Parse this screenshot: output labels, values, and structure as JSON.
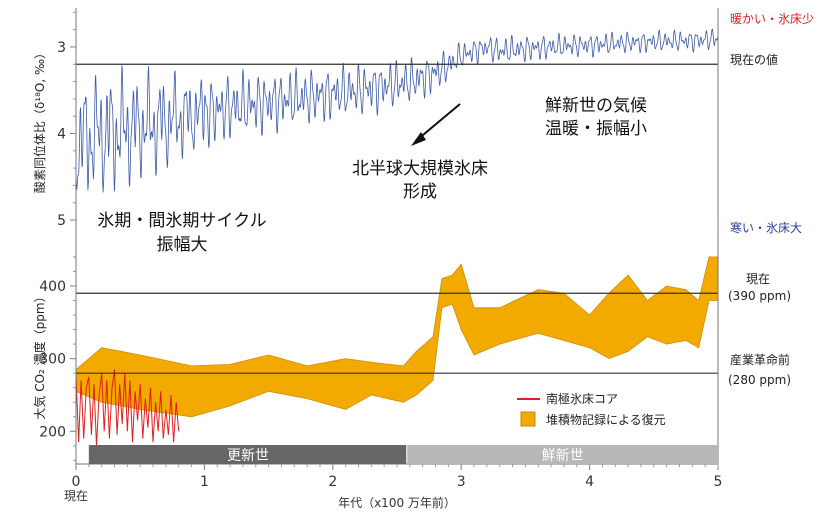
{
  "chart_data": [
    {
      "type": "line",
      "ylabel": "酸素同位体比（δ¹⁸O, ‰）",
      "ylim": [
        5.3,
        2.55
      ],
      "y_inverted": true,
      "yticks": [
        3,
        4,
        5
      ],
      "reference_lines": [
        {
          "label": "現在の値",
          "value": 3.2
        }
      ],
      "top_right_label": "暖かい・氷床少",
      "bottom_right_label": "寒い・氷床大",
      "annotations": {
        "glacial_cycle": [
          "氷期・間氷期サイクル",
          "振幅大"
        ],
        "nh_ice": [
          "北半球大規模氷床",
          "形成"
        ],
        "pliocene": [
          "鮮新世の気候",
          "温暖・振幅小"
        ]
      },
      "series": [
        {
          "color": "#3b5ba8",
          "x": [
            0.0,
            0.1,
            0.2,
            0.3,
            0.4,
            0.5,
            0.6,
            0.7,
            0.8,
            0.9,
            1.0,
            1.2,
            1.4,
            1.6,
            1.8,
            2.0,
            2.2,
            2.4,
            2.6,
            2.7,
            2.8,
            2.9,
            3.0,
            3.1,
            3.2,
            3.3,
            3.5,
            3.7,
            3.9,
            4.1,
            4.3,
            4.5,
            4.7,
            4.9,
            5.0
          ],
          "mean": [
            4.1,
            4.05,
            4.0,
            3.98,
            3.95,
            3.92,
            3.9,
            3.86,
            3.82,
            3.8,
            3.76,
            3.7,
            3.66,
            3.62,
            3.58,
            3.54,
            3.5,
            3.45,
            3.4,
            3.35,
            3.3,
            3.22,
            3.1,
            3.05,
            3.0,
            3.05,
            3.02,
            3.0,
            2.98,
            2.97,
            2.95,
            2.94,
            2.93,
            2.92,
            2.9
          ],
          "amplitude": [
            0.7,
            0.7,
            0.7,
            0.7,
            0.65,
            0.6,
            0.58,
            0.55,
            0.5,
            0.45,
            0.4,
            0.38,
            0.36,
            0.34,
            0.32,
            0.3,
            0.3,
            0.28,
            0.26,
            0.24,
            0.22,
            0.18,
            0.15,
            0.15,
            0.14,
            0.16,
            0.15,
            0.14,
            0.13,
            0.13,
            0.12,
            0.12,
            0.12,
            0.12,
            0.12
          ]
        }
      ]
    },
    {
      "type": "area",
      "xlabel": "年代（x100 万年前）",
      "ylabel": "大気 CO₂ 濃度（ppm）",
      "xlim": [
        0,
        5
      ],
      "ylim": [
        155,
        455
      ],
      "xticks": [
        0,
        1,
        2,
        3,
        4,
        5
      ],
      "xtick_labels": [
        "0",
        "1",
        "2",
        "3",
        "4",
        "5"
      ],
      "x0_extra_label": "現在",
      "yticks": [
        200,
        300,
        400
      ],
      "reference_lines": [
        {
          "label": "現在",
          "sublabel": "(390 ppm)",
          "value": 390
        },
        {
          "label": "産業革命前",
          "sublabel": "(280 ppm)",
          "value": 280
        }
      ],
      "band": {
        "name": "堆積物記録による復元",
        "color": "#f2a900",
        "x": [
          0.0,
          0.2,
          0.5,
          0.9,
          1.2,
          1.5,
          1.8,
          2.1,
          2.3,
          2.55,
          2.65,
          2.78,
          2.85,
          2.93,
          3.0,
          3.1,
          3.3,
          3.6,
          3.8,
          4.0,
          4.15,
          4.3,
          4.45,
          4.6,
          4.75,
          4.85,
          4.93,
          5.0
        ],
        "upper": [
          285,
          315,
          305,
          290,
          292,
          305,
          290,
          300,
          295,
          290,
          310,
          330,
          410,
          415,
          430,
          370,
          370,
          395,
          390,
          360,
          390,
          415,
          380,
          400,
          395,
          380,
          440,
          440
        ],
        "lower": [
          255,
          240,
          230,
          220,
          235,
          255,
          245,
          230,
          250,
          240,
          250,
          270,
          370,
          375,
          340,
          305,
          320,
          335,
          325,
          315,
          300,
          310,
          330,
          320,
          325,
          315,
          380,
          380
        ]
      },
      "series": [
        {
          "name": "南極氷床コア",
          "color": "#e02020",
          "x": [
            0.0,
            0.02,
            0.04,
            0.06,
            0.08,
            0.1,
            0.12,
            0.14,
            0.16,
            0.18,
            0.2,
            0.22,
            0.24,
            0.26,
            0.28,
            0.3,
            0.32,
            0.34,
            0.36,
            0.38,
            0.4,
            0.42,
            0.44,
            0.46,
            0.48,
            0.5,
            0.52,
            0.54,
            0.56,
            0.58,
            0.6,
            0.62,
            0.64,
            0.66,
            0.68,
            0.7,
            0.72,
            0.74,
            0.76,
            0.78,
            0.8
          ],
          "values": [
            280,
            185,
            270,
            190,
            260,
            275,
            195,
            265,
            180,
            250,
            280,
            200,
            270,
            190,
            260,
            285,
            195,
            265,
            210,
            280,
            200,
            270,
            185,
            255,
            215,
            265,
            190,
            245,
            205,
            260,
            185,
            240,
            200,
            255,
            190,
            230,
            195,
            250,
            185,
            240,
            200
          ]
        }
      ],
      "epoch_bands": [
        {
          "label": "更新世",
          "x": [
            0.1,
            2.58
          ],
          "color": "#666666"
        },
        {
          "label": "鮮新世",
          "x": [
            2.58,
            5.0
          ],
          "color": "#b8b8b8"
        }
      ]
    }
  ]
}
